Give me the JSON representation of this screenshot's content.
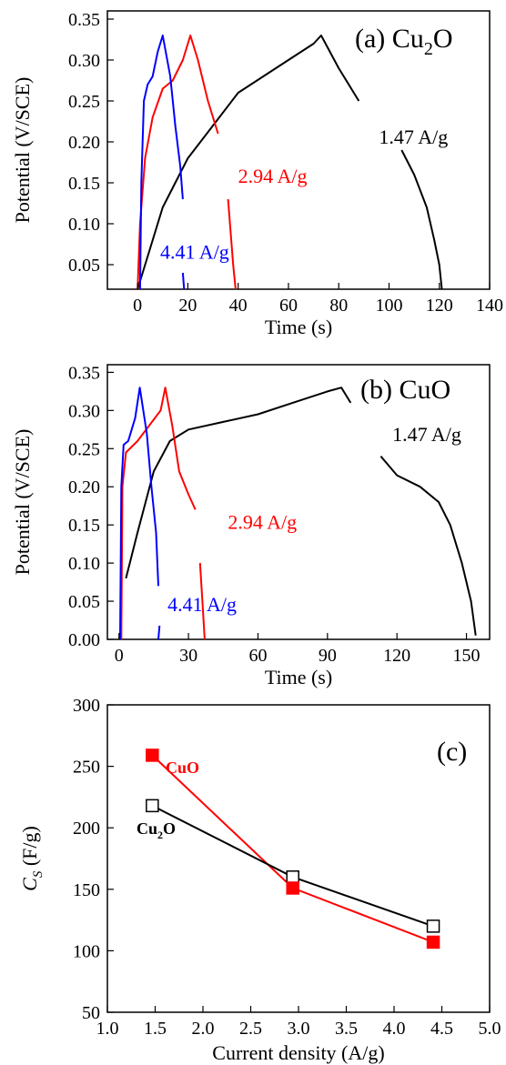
{
  "chart_data": [
    {
      "type": "line",
      "panel": "a",
      "title_prefix": "(a) Cu",
      "title_subscript": "2",
      "title_suffix": "O",
      "xlabel": "Time (s)",
      "ylabel": "Potential (V/SCE)",
      "xlim": [
        -12,
        140
      ],
      "ylim": [
        0.02,
        0.36
      ],
      "xticks": [
        0,
        20,
        40,
        60,
        80,
        100,
        120,
        140
      ],
      "yticks": [
        0.05,
        0.1,
        0.15,
        0.2,
        0.25,
        0.3,
        0.35
      ],
      "ytick_labels": [
        "0.05",
        "0.10",
        "0.15",
        "0.20",
        "0.25",
        "0.30",
        "0.35"
      ],
      "grid": false,
      "series": [
        {
          "name": "1.47 A/g",
          "color": "#000000",
          "label_pos": [
            96,
            0.198
          ],
          "segments": [
            [
              [
                0,
                0.02
              ],
              [
                5,
                0.07
              ],
              [
                10,
                0.12
              ],
              [
                20,
                0.18
              ],
              [
                30,
                0.22
              ],
              [
                40,
                0.26
              ],
              [
                50,
                0.28
              ],
              [
                60,
                0.3
              ],
              [
                70,
                0.32
              ],
              [
                73,
                0.33
              ],
              [
                80,
                0.29
              ],
              [
                88,
                0.25
              ]
            ],
            [
              [
                105,
                0.19
              ],
              [
                110,
                0.16
              ],
              [
                115,
                0.12
              ],
              [
                118,
                0.08
              ],
              [
                120,
                0.05
              ],
              [
                121,
                0.02
              ]
            ]
          ]
        },
        {
          "name": "2.94 A/g",
          "color": "#ff0000",
          "label_pos": [
            40,
            0.15
          ],
          "segments": [
            [
              [
                0,
                0.02
              ],
              [
                1,
                0.1
              ],
              [
                3,
                0.18
              ],
              [
                6,
                0.23
              ],
              [
                10,
                0.265
              ],
              [
                14,
                0.275
              ],
              [
                18,
                0.3
              ],
              [
                21,
                0.33
              ],
              [
                24,
                0.3
              ],
              [
                28,
                0.25
              ],
              [
                32,
                0.21
              ]
            ],
            [
              [
                36,
                0.13
              ],
              [
                38,
                0.05
              ],
              [
                39,
                0.02
              ]
            ]
          ]
        },
        {
          "name": "4.41 A/g",
          "color": "#0000ff",
          "label_pos": [
            9,
            0.057
          ],
          "segments": [
            [
              [
                1,
                0.02
              ],
              [
                1.5,
                0.15
              ],
              [
                2.5,
                0.25
              ],
              [
                4,
                0.27
              ],
              [
                6,
                0.28
              ],
              [
                8,
                0.31
              ],
              [
                10,
                0.33
              ],
              [
                13,
                0.28
              ],
              [
                15,
                0.22
              ],
              [
                17,
                0.17
              ],
              [
                18,
                0.13
              ]
            ],
            [
              [
                18,
                0.04
              ],
              [
                18.5,
                0.02
              ]
            ]
          ]
        }
      ]
    },
    {
      "type": "line",
      "panel": "b",
      "title": "(b) CuO",
      "xlabel": "Time (s)",
      "ylabel": "Potential (V/SCE)",
      "xlim": [
        -5,
        160
      ],
      "ylim": [
        0.0,
        0.36
      ],
      "xticks": [
        0,
        30,
        60,
        90,
        120,
        150
      ],
      "yticks": [
        0.0,
        0.05,
        0.1,
        0.15,
        0.2,
        0.25,
        0.3,
        0.35
      ],
      "ytick_labels": [
        "0.00",
        "0.05",
        "0.10",
        "0.15",
        "0.20",
        "0.25",
        "0.30",
        "0.35"
      ],
      "grid": false,
      "series": [
        {
          "name": "1.47 A/g",
          "color": "#000000",
          "label_pos": [
            118,
            0.26
          ],
          "segments": [
            [
              [
                3,
                0.08
              ],
              [
                8,
                0.14
              ],
              [
                15,
                0.22
              ],
              [
                22,
                0.26
              ],
              [
                30,
                0.275
              ],
              [
                45,
                0.285
              ],
              [
                60,
                0.295
              ],
              [
                75,
                0.31
              ],
              [
                90,
                0.325
              ],
              [
                96,
                0.33
              ],
              [
                100,
                0.31
              ]
            ],
            [
              [
                113,
                0.24
              ],
              [
                120,
                0.215
              ],
              [
                130,
                0.2
              ],
              [
                138,
                0.18
              ],
              [
                143,
                0.15
              ],
              [
                148,
                0.1
              ],
              [
                152,
                0.05
              ],
              [
                154,
                0.005
              ]
            ]
          ]
        },
        {
          "name": "2.94 A/g",
          "color": "#ff0000",
          "label_pos": [
            47,
            0.145
          ],
          "segments": [
            [
              [
                1,
                0.0
              ],
              [
                1.5,
                0.2
              ],
              [
                3,
                0.245
              ],
              [
                8,
                0.26
              ],
              [
                13,
                0.28
              ],
              [
                18,
                0.3
              ],
              [
                20,
                0.33
              ],
              [
                23,
                0.28
              ],
              [
                26,
                0.22
              ],
              [
                30,
                0.19
              ],
              [
                33,
                0.17
              ]
            ],
            [
              [
                35,
                0.1
              ],
              [
                36,
                0.05
              ],
              [
                37,
                0.0
              ]
            ]
          ]
        },
        {
          "name": "4.41 A/g",
          "color": "#0000ff",
          "label_pos": [
            21,
            0.037
          ],
          "segments": [
            [
              [
                0.5,
                0.0
              ],
              [
                1,
                0.2
              ],
              [
                2,
                0.255
              ],
              [
                4,
                0.26
              ],
              [
                7,
                0.29
              ],
              [
                9,
                0.33
              ],
              [
                12,
                0.27
              ],
              [
                14,
                0.2
              ],
              [
                16,
                0.14
              ],
              [
                17,
                0.07
              ]
            ],
            [
              [
                17,
                0.0
              ],
              [
                17.5,
                0.018
              ]
            ]
          ]
        }
      ]
    },
    {
      "type": "line",
      "panel": "c",
      "title": "(c)",
      "xlabel": "Current density (A/g)",
      "ylabel_main": "C",
      "ylabel_sub": "S",
      "ylabel_unit": " (F/g)",
      "xlim": [
        1.0,
        5.0
      ],
      "ylim": [
        50,
        300
      ],
      "xticks": [
        1.0,
        1.5,
        2.0,
        2.5,
        3.0,
        3.5,
        4.0,
        4.5,
        5.0
      ],
      "xtick_labels": [
        "1.0",
        "1.5",
        "2.0",
        "2.5",
        "3.0",
        "3.5",
        "4.0",
        "4.5",
        "5.0"
      ],
      "yticks": [
        50,
        100,
        150,
        200,
        250,
        300
      ],
      "ytick_labels": [
        "50",
        "100",
        "150",
        "200",
        "250",
        "300"
      ],
      "grid": false,
      "series": [
        {
          "name": "CuO",
          "color": "#ff0000",
          "marker": "filled-square",
          "x": [
            1.47,
            2.94,
            4.41
          ],
          "y": [
            259,
            151,
            107
          ]
        },
        {
          "name": "Cu2O",
          "name_main": "Cu",
          "name_sub": "2",
          "name_tail": "O",
          "color": "#000000",
          "marker": "open-square",
          "x": [
            1.47,
            2.94,
            4.41
          ],
          "y": [
            218,
            160,
            120
          ]
        }
      ]
    }
  ]
}
